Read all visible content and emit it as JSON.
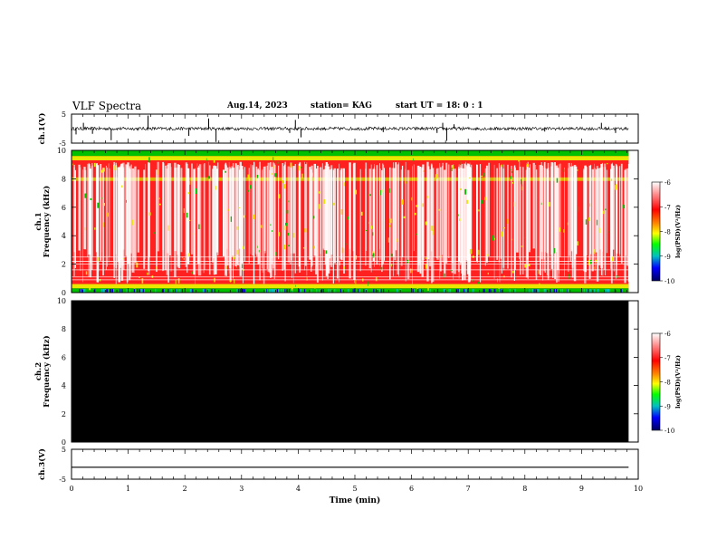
{
  "header": {
    "title": "VLF Spectra",
    "date": "Aug.14, 2023",
    "station": "station= KAG",
    "start": "start  UT =   18: 0  : 1"
  },
  "colors": {
    "spectro_bg": "#ffffff",
    "spectro_red": "#ff2020",
    "spectro_yellow": "#e8e800",
    "spectro_green": "#00c000",
    "spectro_cyan": "#00c8c8",
    "spectro_blue": "#0000c0",
    "ch2_fill": "#000000"
  },
  "chart_data": [
    {
      "type": "line",
      "id": "ch1_waveform",
      "ylabel": "ch.1(V)",
      "ylim": [
        -5,
        5
      ],
      "yticks": [
        "5",
        "-5"
      ],
      "xlim": [
        0,
        10
      ],
      "baseline": 0,
      "spikes_x": [
        0.08,
        0.21,
        0.37,
        0.7,
        1.35,
        2.07,
        2.42,
        2.55,
        3.85,
        3.95,
        4.05,
        5.5,
        6.45,
        6.55,
        6.62,
        6.75,
        8.35,
        9.35,
        9.6
      ],
      "spikes_y": [
        -2.0,
        2.0,
        -1.8,
        -4.0,
        4.5,
        -2.5,
        3.5,
        -4.6,
        -1.5,
        3.0,
        -3.0,
        -1.2,
        -1.5,
        2.0,
        -4.2,
        1.5,
        -1.0,
        2.0,
        -1.5
      ],
      "data_end_x": 9.83
    },
    {
      "type": "heatmap",
      "id": "ch1_spectrogram",
      "ylabel": "ch.1\nFrequency (kHz)",
      "ylim": [
        0,
        10
      ],
      "yticks": [
        "0",
        "2",
        "4",
        "6",
        "8",
        "10"
      ],
      "xlim": [
        0,
        10
      ],
      "data_end_x": 9.83,
      "bands_khz": [
        0.3,
        0.6,
        1.0,
        1.5,
        2.0,
        2.5,
        8.0,
        9.5,
        10.0
      ]
    },
    {
      "type": "heatmap",
      "id": "ch2_spectrogram",
      "ylabel": "ch.2\nFrequency (kHz)",
      "ylim": [
        0,
        10
      ],
      "yticks": [
        "0",
        "2",
        "4",
        "6",
        "8",
        "10"
      ],
      "xlim": [
        0,
        10
      ],
      "data_end_x": 9.83,
      "fill": "black"
    },
    {
      "type": "line",
      "id": "ch3_waveform",
      "ylabel": "ch.3(V)",
      "ylim": [
        -5,
        5
      ],
      "yticks": [
        "5",
        "-5"
      ],
      "xlim": [
        0,
        10
      ],
      "xticks": [
        "0",
        "1",
        "2",
        "3",
        "4",
        "5",
        "6",
        "7",
        "8",
        "9",
        "10"
      ],
      "xlabel": "Time (min)",
      "x": [
        0,
        9.83
      ],
      "y": [
        -1.0,
        -1.0
      ]
    }
  ],
  "colorbars": [
    {
      "id": "cb1",
      "label": "log(PSD)(V²/Hz)",
      "ticks": [
        "-6",
        "-7",
        "-8",
        "-9",
        "-10"
      ]
    },
    {
      "id": "cb2",
      "label": "log(PSD)(V²/Hz)",
      "ticks": [
        "-6",
        "-7",
        "-8",
        "-9",
        "-10"
      ]
    }
  ]
}
